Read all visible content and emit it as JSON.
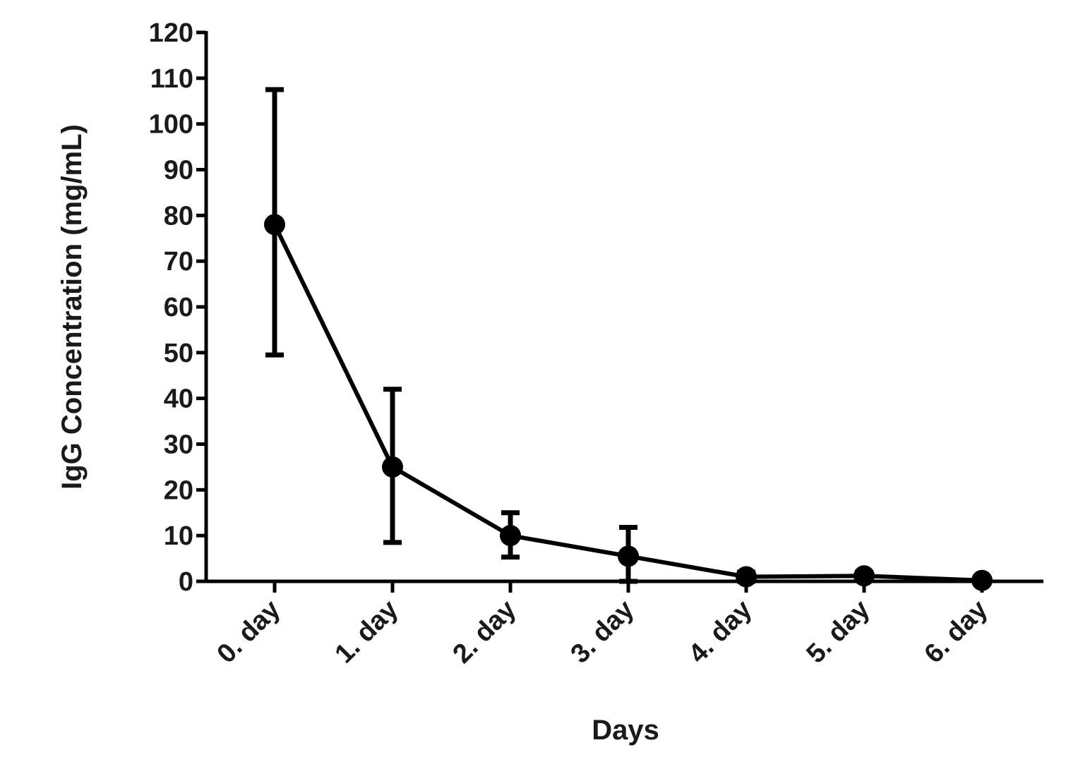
{
  "chart_data": {
    "type": "line",
    "title": "",
    "xlabel": "Days",
    "ylabel": "IgG Concentration (mg/mL)",
    "categories": [
      "0. day",
      "1. day",
      "2. day",
      "3. day",
      "4. day",
      "5. day",
      "6. day"
    ],
    "yticks": [
      "0",
      "10",
      "20",
      "30",
      "40",
      "50",
      "60",
      "70",
      "80",
      "90",
      "100",
      "110",
      "120"
    ],
    "ylim": [
      0,
      120
    ],
    "grid": false,
    "legend": "none",
    "series": [
      {
        "values": [
          78,
          25,
          10,
          5.5,
          1,
          1.2,
          0.2
        ],
        "error_low": [
          49.5,
          8.5,
          5.3,
          0,
          0,
          0.5,
          0
        ],
        "error_high": [
          107.5,
          42,
          15,
          11.8,
          2,
          2,
          0.8
        ],
        "color": "#000000"
      }
    ]
  }
}
